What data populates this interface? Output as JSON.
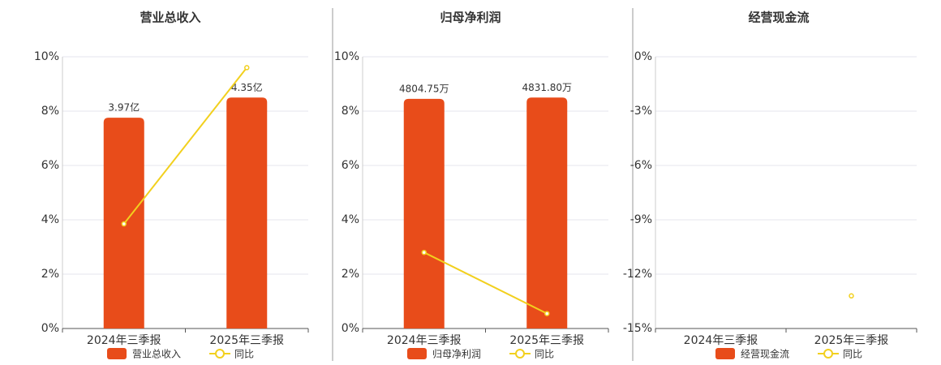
{
  "chart_data": [
    {
      "type": "bar",
      "title": "营业总收入",
      "categories": [
        "2024年三季报",
        "2025年三季报"
      ],
      "series": [
        {
          "name": "营业总收入",
          "color": "#e84c1a",
          "values": [
            3.97,
            4.35
          ],
          "value_labels": [
            "3.97亿",
            "4.35亿"
          ]
        },
        {
          "name": "同比",
          "type": "line",
          "color": "#f2d01e",
          "values": [
            3.85,
            9.6
          ]
        }
      ],
      "ylim": [
        0,
        10
      ],
      "yticks": [
        {
          "value": 0,
          "label": "0%"
        },
        {
          "value": 2,
          "label": "2%"
        },
        {
          "value": 4,
          "label": "4%"
        },
        {
          "value": 6,
          "label": "6%"
        },
        {
          "value": 8,
          "label": "8%"
        },
        {
          "value": 10,
          "label": "10%"
        }
      ],
      "grid": true
    },
    {
      "type": "bar",
      "title": "归母净利润",
      "categories": [
        "2024年三季报",
        "2025年三季报"
      ],
      "series": [
        {
          "name": "归母净利润",
          "color": "#e84c1a",
          "values": [
            4804.75,
            4831.8
          ],
          "value_labels": [
            "4804.75万",
            "4831.80万"
          ]
        },
        {
          "name": "同比",
          "type": "line",
          "color": "#f2d01e",
          "values": [
            2.8,
            0.55
          ]
        }
      ],
      "ylim": [
        0,
        10
      ],
      "yticks": [
        {
          "value": 0,
          "label": "0%"
        },
        {
          "value": 2,
          "label": "2%"
        },
        {
          "value": 4,
          "label": "4%"
        },
        {
          "value": 6,
          "label": "6%"
        },
        {
          "value": 8,
          "label": "8%"
        },
        {
          "value": 10,
          "label": "10%"
        }
      ],
      "grid": true
    },
    {
      "type": "bar",
      "title": "经营现金流",
      "categories": [
        "2024年三季报",
        "2025年三季报"
      ],
      "series": [
        {
          "name": "经营现金流",
          "color": "#e84c1a",
          "values": [
            null,
            null
          ]
        },
        {
          "name": "同比",
          "type": "line",
          "color": "#f2d01e",
          "values": [
            null,
            -13.2
          ]
        }
      ],
      "ylim": [
        -15,
        0
      ],
      "yticks": [
        {
          "value": -15,
          "label": "-15%"
        },
        {
          "value": -12,
          "label": "-12%"
        },
        {
          "value": -9,
          "label": "-9%"
        },
        {
          "value": -6,
          "label": "-6%"
        },
        {
          "value": -3,
          "label": "-3%"
        },
        {
          "value": 0,
          "label": "0%"
        }
      ],
      "grid": true
    }
  ]
}
